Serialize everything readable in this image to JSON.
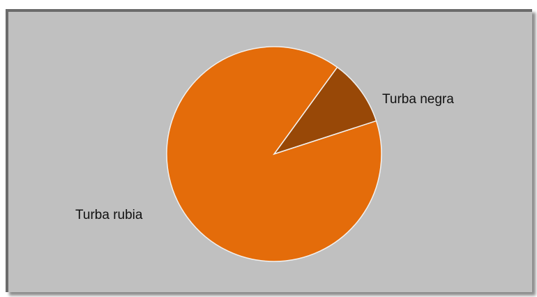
{
  "chart_data": {
    "type": "pie",
    "title": "",
    "slices": [
      {
        "label": "Turba rubia",
        "value": 90,
        "color": "#e46c0a"
      },
      {
        "label": "Turba negra",
        "value": 10,
        "color": "#984807"
      }
    ],
    "start_angle_deg": 36,
    "direction": "clockwise",
    "legend": "none",
    "labels": "outside",
    "background_color": "#c0c0c0",
    "slice_border_color": "#f2f2f2"
  }
}
